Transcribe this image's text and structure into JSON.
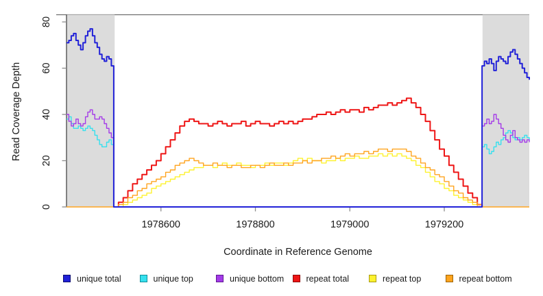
{
  "figure": {
    "x_axis_title": "Coordinate in Reference Genome",
    "y_axis_title": "Read Coverage Depth"
  },
  "colors": {
    "unique_total": "#2121d8",
    "unique_top": "#35e0ee",
    "unique_bottom": "#a43be8",
    "repeat_total": "#ee1515",
    "repeat_top": "#fdf22f",
    "repeat_bottom": "#ffa41e",
    "shade": "#dcdcdc",
    "axis_line": "#3a3a3a",
    "tick": "#8c8c8c",
    "top_border": "#6e6e6e",
    "text": "#1a1a1a"
  },
  "legend": {
    "items": [
      {
        "label": "unique total",
        "fill": "#2121d8",
        "border": "#0b0b6e"
      },
      {
        "label": "unique top",
        "fill": "#35e0ee",
        "border": "#0f8f9b"
      },
      {
        "label": "unique bottom",
        "fill": "#a43be8",
        "border": "#5e1693"
      },
      {
        "label": "repeat total",
        "fill": "#ee1515",
        "border": "#8f0606"
      },
      {
        "label": "repeat top",
        "fill": "#fdf22f",
        "border": "#a89a12"
      },
      {
        "label": "repeat bottom",
        "fill": "#ffa41e",
        "border": "#9c6205"
      }
    ]
  },
  "chart_data": {
    "type": "line",
    "title": "",
    "xlabel": "Coordinate in Reference Genome",
    "ylabel": "Read Coverage Depth",
    "xlim": [
      1978400,
      1979380
    ],
    "ylim": [
      0,
      80
    ],
    "x_ticks": [
      1978600,
      1978800,
      1979000,
      1979200
    ],
    "y_ticks": [
      0,
      20,
      40,
      60,
      80
    ],
    "grid": false,
    "legend_position": "bottom",
    "step": true,
    "shaded_regions": [
      {
        "from": 1978400,
        "to": 1978502
      },
      {
        "from": 1979281,
        "to": 1979380
      }
    ],
    "series": [
      {
        "name": "repeat top",
        "color": "#fdf22f",
        "width": 1.4,
        "segments": [
          {
            "x0": 1978500,
            "dx": 10,
            "values": [
              0,
              0,
              1,
              2,
              3,
              4,
              5,
              6,
              8,
              9,
              10,
              11,
              12,
              13,
              14,
              15,
              16,
              17,
              17,
              18,
              18,
              17,
              18,
              19,
              18,
              18,
              19,
              18,
              18,
              17,
              18,
              18,
              19,
              18,
              19,
              19,
              18,
              19,
              20,
              21,
              20,
              21,
              20,
              20,
              19,
              20,
              20,
              21,
              20,
              21,
              21,
              22,
              21,
              21,
              22,
              22,
              23,
              22,
              23,
              22,
              23,
              22,
              21,
              20,
              18,
              17,
              15,
              13,
              11,
              10,
              8,
              7,
              5,
              4,
              3,
              2,
              1,
              0,
              0
            ]
          }
        ]
      },
      {
        "name": "repeat total",
        "color": "#ee1515",
        "width": 2,
        "segments": [
          {
            "x0": 1978500,
            "dx": 10,
            "values": [
              0,
              2,
              4,
              7,
              10,
              12,
              14,
              16,
              18,
              20,
              23,
              26,
              29,
              32,
              35,
              37,
              38,
              37,
              36,
              36,
              35,
              36,
              37,
              36,
              35,
              36,
              36,
              37,
              35,
              36,
              37,
              36,
              36,
              35,
              36,
              37,
              36,
              37,
              36,
              37,
              38,
              38,
              39,
              40,
              40,
              41,
              40,
              41,
              42,
              41,
              42,
              42,
              41,
              43,
              42,
              43,
              44,
              44,
              45,
              44,
              45,
              46,
              47,
              45,
              43,
              40,
              37,
              33,
              29,
              25,
              22,
              18,
              15,
              12,
              9,
              6,
              4,
              1,
              0
            ]
          }
        ]
      },
      {
        "name": "repeat bottom",
        "color": "#ffa41e",
        "width": 1.4,
        "segments": [
          {
            "x0": 1978400,
            "dx": 100,
            "values": [
              0,
              0
            ]
          },
          {
            "x0": 1978500,
            "dx": 10,
            "values": [
              0,
              1,
              2,
              4,
              5,
              7,
              8,
              10,
              11,
              12,
              13,
              15,
              16,
              18,
              19,
              20,
              21,
              20,
              19,
              18,
              18,
              19,
              18,
              18,
              17,
              18,
              18,
              17,
              17,
              18,
              18,
              17,
              18,
              19,
              18,
              18,
              19,
              18,
              19,
              19,
              20,
              19,
              20,
              20,
              21,
              21,
              22,
              21,
              22,
              23,
              22,
              23,
              23,
              24,
              23,
              24,
              25,
              25,
              24,
              25,
              25,
              25,
              24,
              22,
              21,
              19,
              17,
              16,
              14,
              13,
              11,
              9,
              7,
              6,
              4,
              3,
              2,
              1,
              0
            ]
          },
          {
            "x0": 1979280,
            "dx": 100,
            "values": [
              0,
              0
            ]
          }
        ]
      },
      {
        "name": "unique top",
        "color": "#35e0ee",
        "width": 1.4,
        "segments": [
          {
            "x0": 1978400,
            "dx": 5,
            "values": [
              38,
              39,
              36,
              34,
              34,
              35,
              34,
              33,
              34,
              35,
              34,
              33,
              31,
              29,
              27,
              26,
              26,
              28,
              29,
              27,
              28
            ]
          },
          {
            "x0": 1978500,
            "dx": 780,
            "values": [
              0,
              0
            ]
          },
          {
            "x0": 1979280,
            "dx": 5,
            "values": [
              26,
              27,
              25,
              23,
              24,
              26,
              28,
              27,
              29,
              30,
              32,
              33,
              32,
              30,
              29,
              30,
              29,
              30,
              31,
              30,
              29
            ]
          }
        ]
      },
      {
        "name": "unique bottom",
        "color": "#a43be8",
        "width": 1.4,
        "segments": [
          {
            "x0": 1978400,
            "dx": 5,
            "values": [
              40,
              37,
              35,
              36,
              38,
              36,
              35,
              36,
              39,
              41,
              42,
              40,
              38,
              38,
              39,
              38,
              36,
              34,
              32,
              30,
              30
            ]
          },
          {
            "x0": 1978500,
            "dx": 780,
            "values": [
              0,
              0
            ]
          },
          {
            "x0": 1979280,
            "dx": 5,
            "values": [
              35,
              36,
              38,
              36,
              37,
              40,
              38,
              36,
              34,
              31,
              29,
              28,
              31,
              33,
              30,
              29,
              28,
              29,
              28,
              29,
              28
            ]
          }
        ]
      },
      {
        "name": "unique total",
        "color": "#2121d8",
        "width": 2,
        "segments": [
          {
            "x0": 1978400,
            "dx": 5,
            "values": [
              71,
              72,
              74,
              75,
              72,
              70,
              68,
              71,
              74,
              76,
              77,
              74,
              71,
              69,
              66,
              64,
              63,
              65,
              64,
              61,
              60
            ]
          },
          {
            "x0": 1978500,
            "dx": 780,
            "values": [
              0,
              0
            ]
          },
          {
            "x0": 1979280,
            "dx": 5,
            "values": [
              61,
              63,
              62,
              64,
              62,
              59,
              63,
              65,
              64,
              63,
              62,
              65,
              67,
              68,
              66,
              64,
              62,
              60,
              58,
              56,
              55
            ]
          }
        ]
      }
    ]
  }
}
